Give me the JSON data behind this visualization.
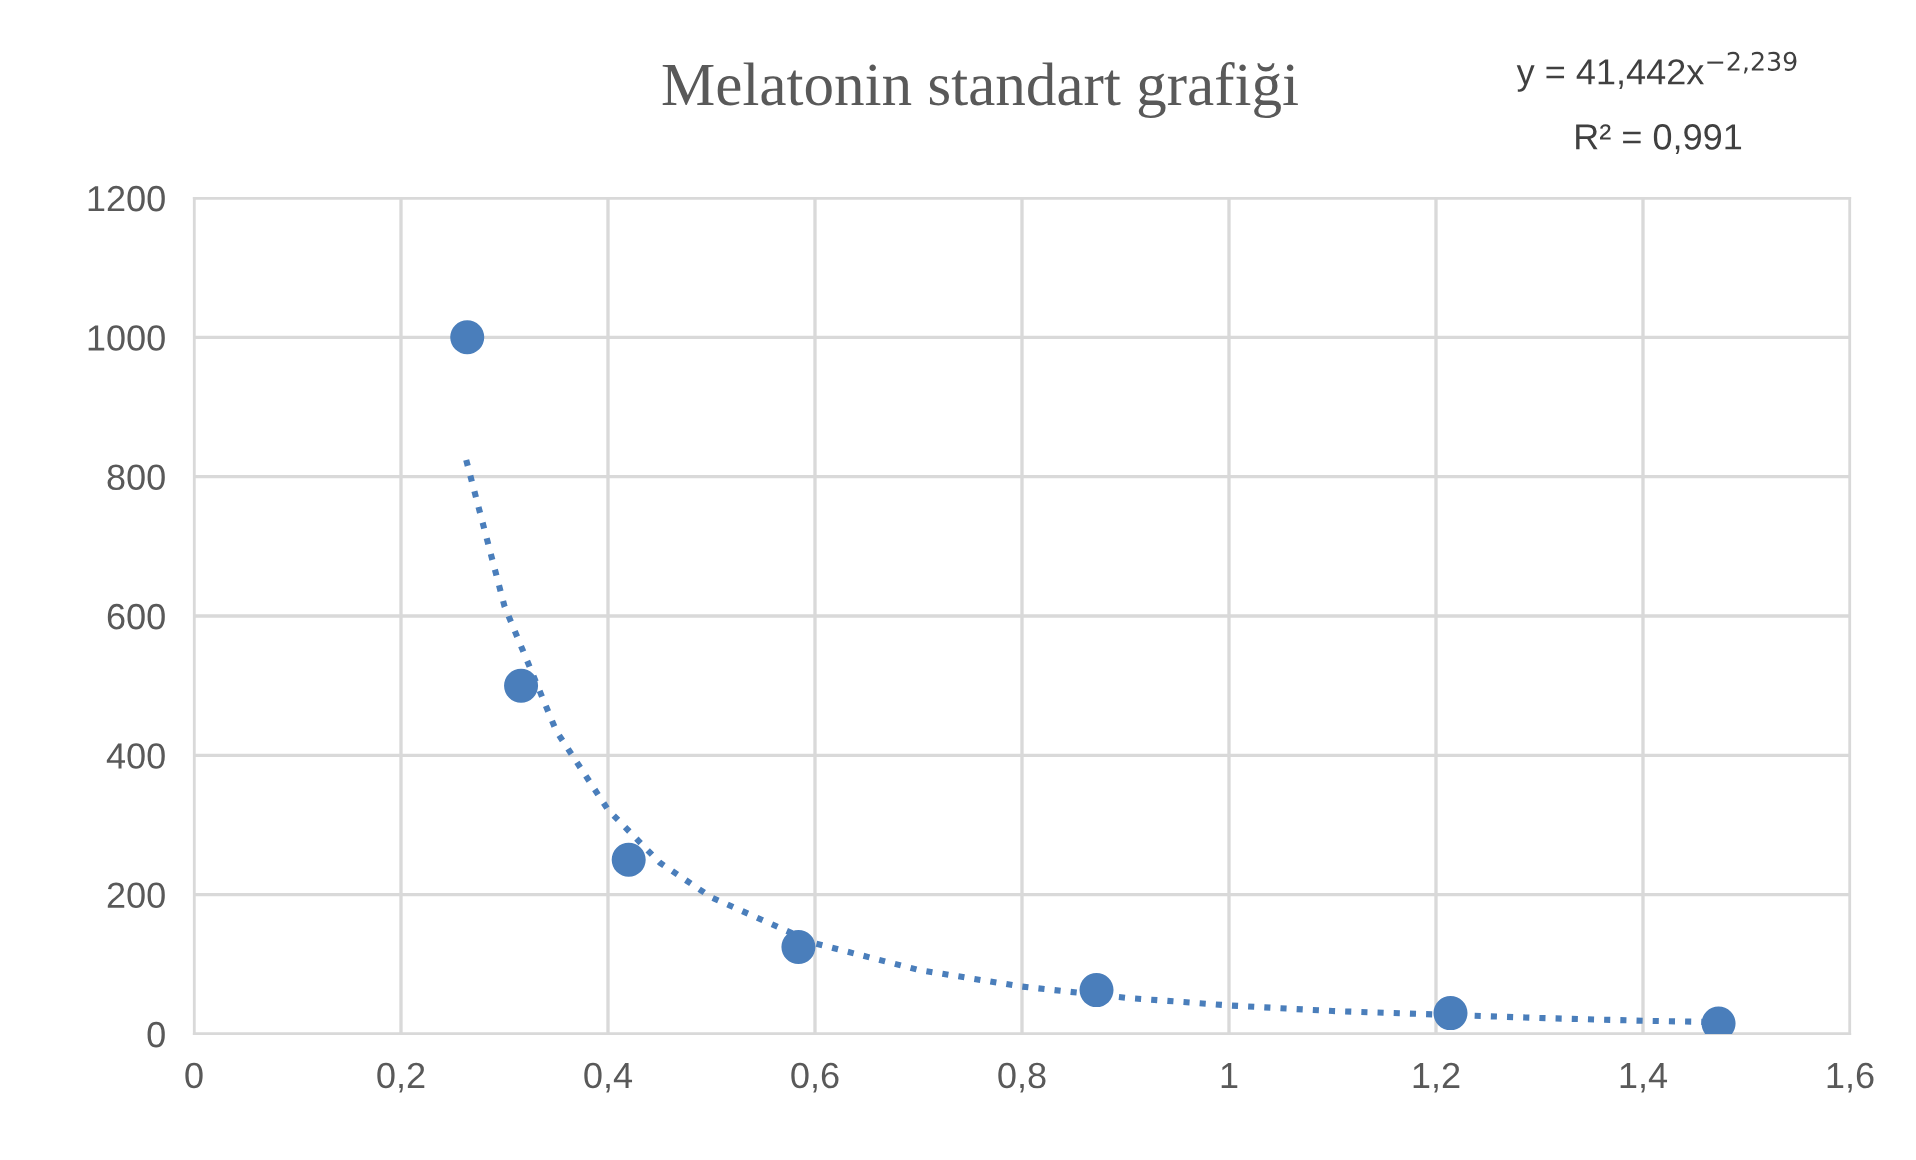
{
  "chart_data": {
    "type": "scatter",
    "title": "Melatonin standart grafiği",
    "annotations": [
      "y = 41,442x$^{−2,239}$",
      "R² = 0,991"
    ],
    "series": [
      {
        "color": "#4a7ebb",
        "marker": "circle",
        "x": [
          0.264,
          0.316,
          0.42,
          0.584,
          0.872,
          1.214,
          1.473
        ],
        "values": [
          1000,
          500,
          250,
          125,
          63,
          30,
          15
        ]
      },
      {
        "type": "line",
        "color": "#4a7ebb",
        "line_style": "dotted",
        "marker": "none",
        "x": [
          0.263,
          0.3,
          0.35,
          0.4,
          0.45,
          0.5,
          0.6,
          0.7,
          0.8,
          0.9,
          1.0,
          1.1,
          1.2,
          1.3,
          1.4,
          1.473
        ],
        "values": [
          824,
          614,
          435,
          322,
          246,
          196,
          130,
          92,
          68,
          52,
          41,
          33,
          28,
          23,
          19,
          17
        ]
      }
    ],
    "xlim": [
      0,
      1.6
    ],
    "xticks": [
      {
        "value": 0,
        "label": "0"
      },
      {
        "value": 0.2,
        "label": "0,2"
      },
      {
        "value": 0.4,
        "label": "0,4"
      },
      {
        "value": 0.6,
        "label": "0,6"
      },
      {
        "value": 0.8,
        "label": "0,8"
      },
      {
        "value": 1,
        "label": "1"
      },
      {
        "value": 1.2,
        "label": "1,2"
      },
      {
        "value": 1.4,
        "label": "1,4"
      },
      {
        "value": 1.6,
        "label": "1,6"
      }
    ],
    "ylim": [
      0,
      1200
    ],
    "yticks": [
      0,
      200,
      400,
      600,
      800,
      1000,
      1200
    ],
    "grid": true
  }
}
